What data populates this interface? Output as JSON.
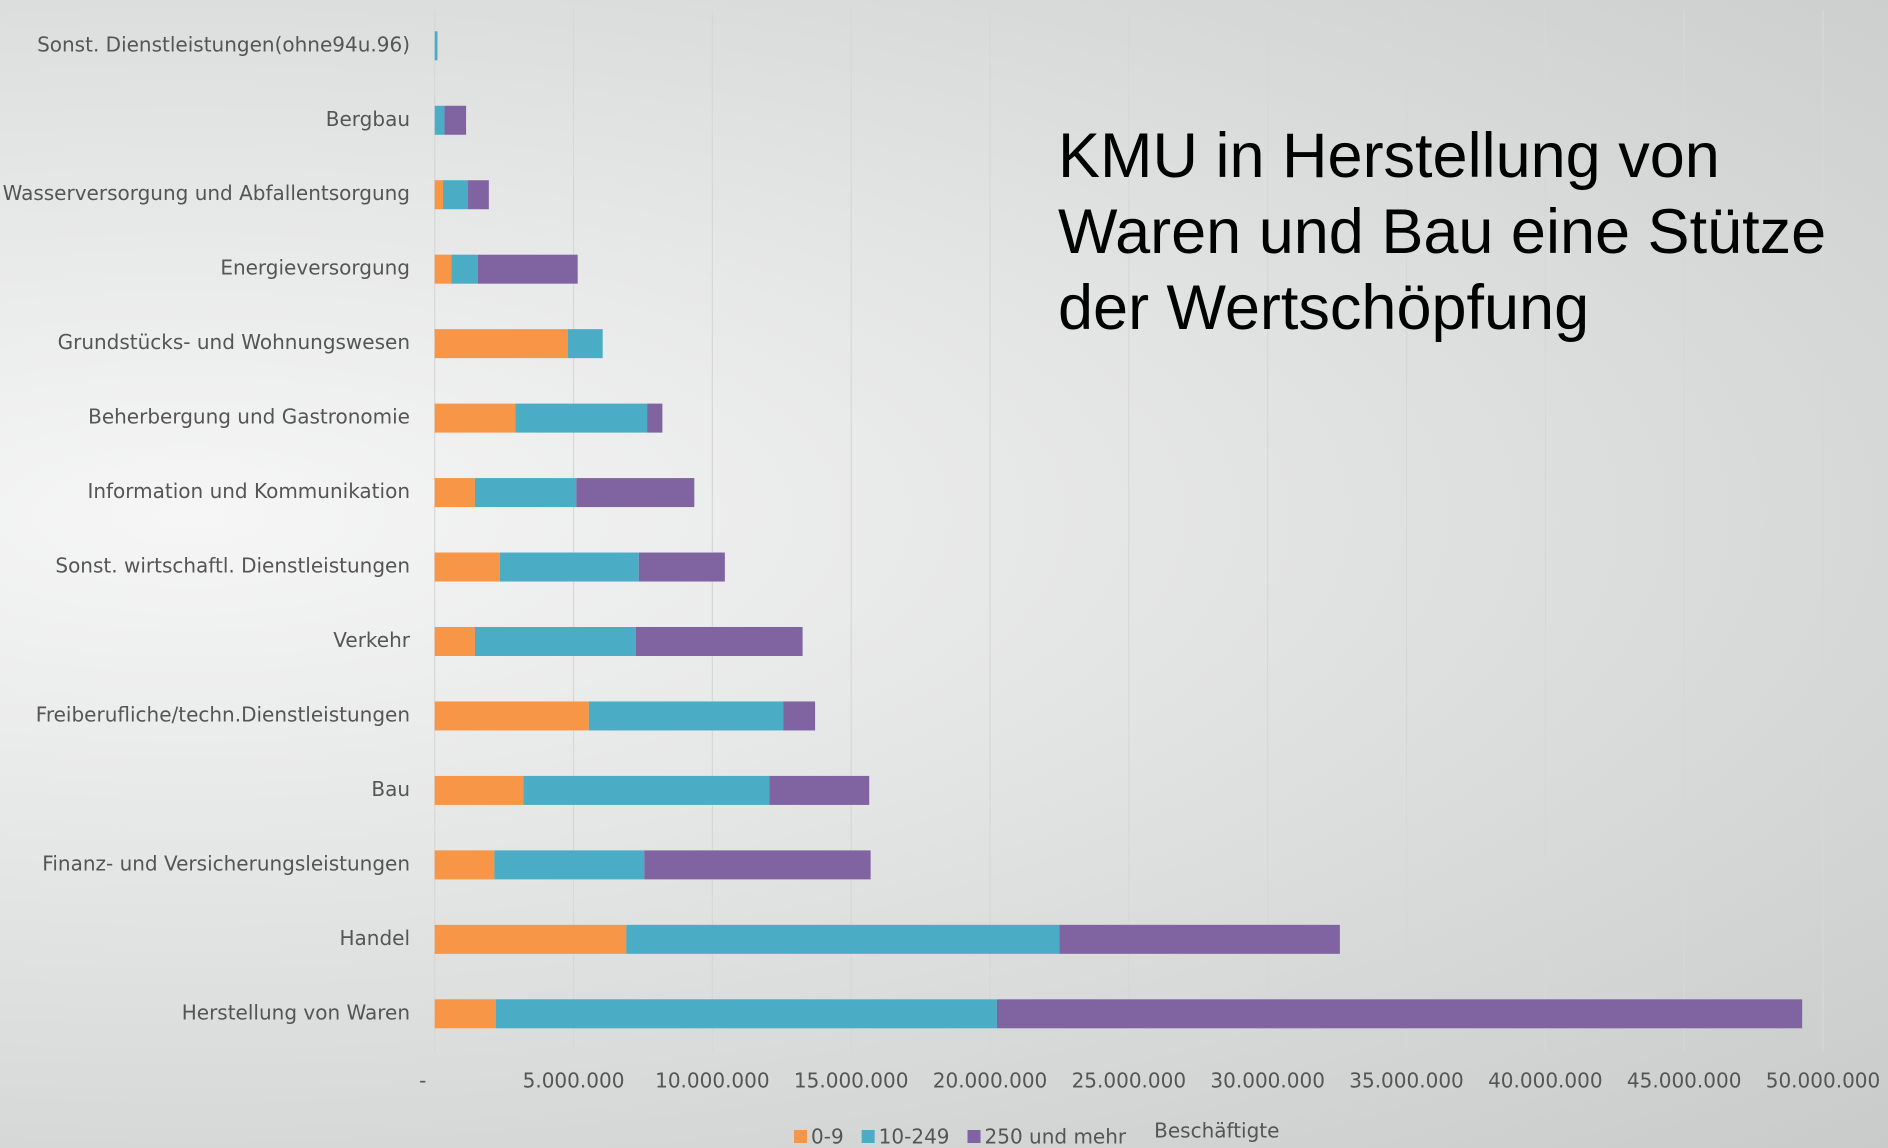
{
  "chart_data": {
    "type": "bar",
    "orientation": "horizontal",
    "stacked": true,
    "title": "KMU in Herstellung von Waren und Bau eine Stütze der Wertschöpfung",
    "x_label": "Beschäftigte",
    "categories": [
      "Sonst. Dienstleistungen(ohne94u.96)",
      "Bergbau",
      "Wasserversorgung und Abfallentsorgung",
      "Energieversorgung",
      "Grundstücks- und Wohnungswesen",
      "Beherbergung und Gastronomie",
      "Information und Kommunikation",
      "Sonst. wirtschaftl. Dienstleistungen",
      "Verkehr",
      "Freiberufliche/techn.Dienstleistungen",
      "Bau",
      "Finanz- und Versicherungsleistungen",
      "Handel",
      "Herstellung von Waren"
    ],
    "series": [
      {
        "name": "0-9",
        "color": "#f79646",
        "values": [
          0,
          0,
          300000,
          600000,
          4800000,
          2900000,
          1450000,
          2350000,
          1450000,
          5550000,
          3200000,
          2150000,
          6900000,
          2200000
        ]
      },
      {
        "name": "10-249",
        "color": "#4bacc6",
        "values": [
          100000,
          350000,
          900000,
          950000,
          1250000,
          4750000,
          3650000,
          5000000,
          5800000,
          7000000,
          8850000,
          5400000,
          15600000,
          18050000
        ]
      },
      {
        "name": "250 und mehr",
        "color": "#8064a2",
        "values": [
          0,
          780000,
          750000,
          3600000,
          0,
          550000,
          4250000,
          3100000,
          6000000,
          1150000,
          3600000,
          8150000,
          10100000,
          29000000
        ]
      }
    ],
    "xlim": [
      0,
      50000000
    ],
    "xticks": [
      {
        "value": 0,
        "label": "-"
      },
      {
        "value": 5000000,
        "label": "5.000.000"
      },
      {
        "value": 10000000,
        "label": "10.000.000"
      },
      {
        "value": 15000000,
        "label": "15.000.000"
      },
      {
        "value": 20000000,
        "label": "20.000.000"
      },
      {
        "value": 25000000,
        "label": "25.000.000"
      },
      {
        "value": 30000000,
        "label": "30.000.000"
      },
      {
        "value": 35000000,
        "label": "35.000.000"
      },
      {
        "value": 40000000,
        "label": "40.000.000"
      },
      {
        "value": 45000000,
        "label": "45.000.000"
      },
      {
        "value": 50000000,
        "label": "50.000.000"
      }
    ],
    "grid": true,
    "legend": "bottom"
  }
}
